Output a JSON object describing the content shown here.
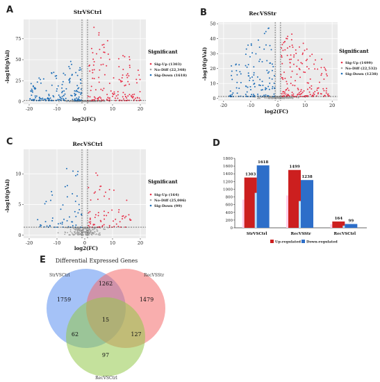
{
  "colors": {
    "up": "#e8324b",
    "nodiff": "#a0a0a0",
    "down": "#1f6fb8",
    "panel_bg": "#ebebeb",
    "bar_up": "#cc1f1f",
    "bar_down": "#2d6ec9",
    "venn_a": "#5b8ff0",
    "venn_b": "#f46c6c",
    "venn_c": "#93c84a"
  },
  "panel_letters": {
    "a": "A",
    "b": "B",
    "c": "C",
    "d": "D",
    "e": "E"
  },
  "chart_data": [
    {
      "id": "A",
      "type": "scatter",
      "title": "StrVSCtrl",
      "xlabel": "log2(FC)",
      "ylabel": "-log10(pVal)",
      "xlim": [
        -22,
        22
      ],
      "ylim": [
        -3,
        98
      ],
      "xticks": [
        -20,
        -10,
        0,
        10,
        20
      ],
      "yticks": [
        0,
        25,
        50,
        75
      ],
      "vlines": [
        -1,
        1
      ],
      "hline": 1.3,
      "grid": true,
      "legend": {
        "title": "Significant",
        "position": "right",
        "entries": [
          "Sig-Up (1303)",
          "No-Diff (22,348)",
          "Sig-Down (1618)"
        ]
      },
      "counts": {
        "up": 1303,
        "nodiff": 22348,
        "down": 1618
      },
      "clusters": {
        "up": {
          "xrange": [
            1.1,
            20
          ],
          "ymax": 92
        },
        "down": {
          "xrange": [
            -20,
            -1.1
          ],
          "ymax": 50
        }
      }
    },
    {
      "id": "B",
      "type": "scatter",
      "title": "RecVSStr",
      "xlabel": "log2(FC)",
      "ylabel": "-log10(pVal)",
      "xlim": [
        -22,
        22
      ],
      "ylim": [
        -1.5,
        51
      ],
      "xticks": [
        -20,
        -10,
        0,
        10,
        20
      ],
      "yticks": [
        0,
        10,
        20,
        30,
        40,
        50
      ],
      "vlines": [
        -1,
        1
      ],
      "hline": 1.3,
      "grid": true,
      "legend": {
        "title": "Significant",
        "position": "right",
        "entries": [
          "Sig-Up (1499)",
          "No-Diff (22,532)",
          "Sig-Down (1238)"
        ]
      },
      "counts": {
        "up": 1499,
        "nodiff": 22532,
        "down": 1238
      },
      "clusters": {
        "up": {
          "xrange": [
            1.1,
            19
          ],
          "ymax": 46
        },
        "down": {
          "xrange": [
            -18,
            -1.1
          ],
          "ymax": 49
        }
      }
    },
    {
      "id": "C",
      "type": "scatter",
      "title": "RecVSCtrl",
      "xlabel": "log2(FC)",
      "ylabel": "-log10(pVal)",
      "xlim": [
        -22,
        22
      ],
      "ylim": [
        -0.5,
        14
      ],
      "xticks": [
        -20,
        -10,
        0,
        10,
        20
      ],
      "yticks": [
        0,
        5,
        10
      ],
      "vlines": [
        -1,
        1
      ],
      "hline": 1.3,
      "grid": true,
      "legend": {
        "title": "Significant",
        "position": "right",
        "entries": [
          "Sig-Up (164)",
          "No-Diff (25,006)",
          "Sig-Down (99)"
        ]
      },
      "counts": {
        "up": 164,
        "nodiff": 25006,
        "down": 99
      },
      "clusters": {
        "up": {
          "xrange": [
            1.1,
            17
          ],
          "ymax": 10.5
        },
        "down": {
          "xrange": [
            -17,
            -1.1
          ],
          "ymax": 13.5
        }
      }
    },
    {
      "id": "D",
      "type": "bar",
      "categories": [
        "StrVSCtrl",
        "RecVSStr",
        "RecVSCtrl"
      ],
      "series": [
        {
          "name": "Up-regulated",
          "values": [
            1303,
            1499,
            164
          ]
        },
        {
          "name": "Down-regulated",
          "values": [
            1618,
            1238,
            99
          ]
        }
      ],
      "ylim": [
        0,
        1800
      ],
      "yticks": [
        0,
        200,
        400,
        600,
        800,
        1000,
        1200,
        1400,
        1600,
        1800
      ],
      "legend_position": "bottom",
      "data_labels": [
        "1303",
        "1618",
        "1499",
        "1238",
        "164",
        "99"
      ]
    },
    {
      "id": "E",
      "type": "venn",
      "title": "Differential Expressed Genes",
      "sets": [
        "StrVSCtrl",
        "RecVSStr",
        "RecVSCtrl"
      ],
      "regions": {
        "only_a": 1759,
        "only_b": 1479,
        "only_c": 97,
        "a_b": 1262,
        "a_c": 62,
        "b_c": 127,
        "a_b_c": 15
      }
    }
  ]
}
